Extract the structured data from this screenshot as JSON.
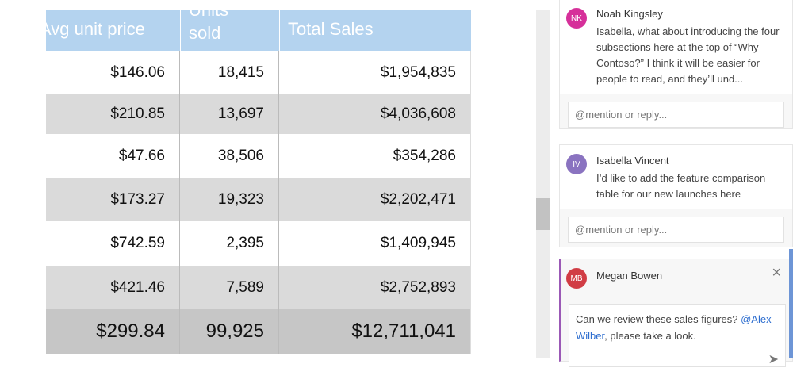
{
  "table": {
    "headers": [
      "Avg unit price",
      "Units sold",
      "Total Sales"
    ],
    "rows": [
      [
        "$146.06",
        "18,415",
        "$1,954,835"
      ],
      [
        "$210.85",
        "13,697",
        "$4,036,608"
      ],
      [
        "$47.66",
        "38,506",
        "$354,286"
      ],
      [
        "$173.27",
        "19,323",
        "$2,202,471"
      ],
      [
        "$742.59",
        "2,395",
        "$1,409,945"
      ],
      [
        "$421.46",
        "7,589",
        "$2,752,893"
      ]
    ],
    "total": [
      "$299.84",
      "99,925",
      "$12,711,041"
    ]
  },
  "comments": [
    {
      "initials": "NK",
      "name": "Noah Kingsley",
      "color": "#d6309a",
      "text": "Isabella, what about introducing the four subsections here at the top of “Why Contoso?” I think it will be easier for people to read, and they’ll und...",
      "reply_placeholder": "@mention or reply..."
    },
    {
      "initials": "IV",
      "name": "Isabella Vincent",
      "color": "#8a73c0",
      "text": "I’d like to add the feature comparison table for our new launches here",
      "reply_placeholder": "@mention or reply..."
    },
    {
      "initials": "MB",
      "name": "Megan Bowen",
      "color": "#d13d45",
      "draft_before": "Can we review these sales figures? ",
      "draft_mention": "@Alex Wilber",
      "draft_after": ", please take a look."
    }
  ]
}
